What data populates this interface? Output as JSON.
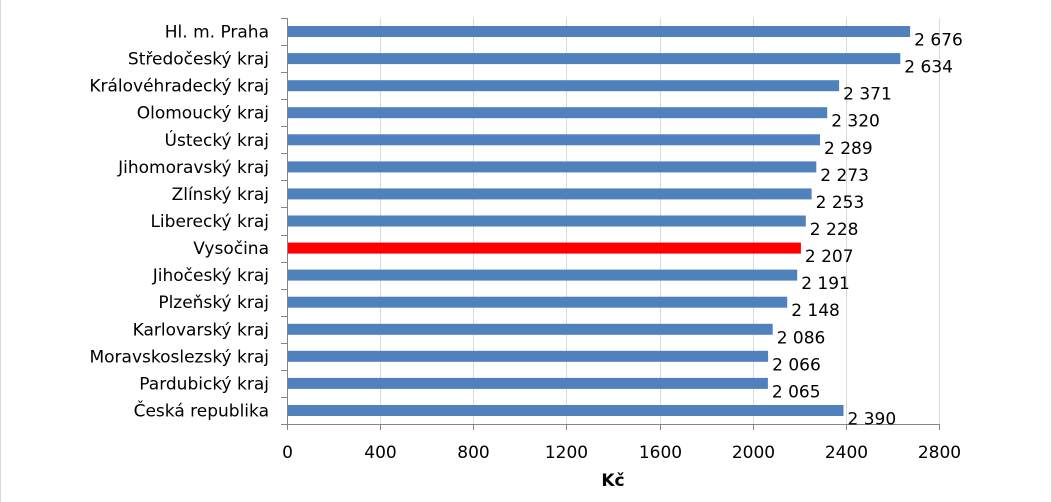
{
  "chart_data": {
    "type": "bar",
    "orientation": "horizontal",
    "title": "",
    "xlabel": "Kč",
    "ylabel": "",
    "xlim": [
      0,
      2800
    ],
    "xticks": [
      0,
      400,
      800,
      1200,
      1600,
      2000,
      2400,
      2800
    ],
    "grid": "vertical",
    "legend": "none",
    "categories": [
      "Hl. m. Praha",
      "Středočeský kraj",
      "Královéhradecký kraj",
      "Olomoucký kraj",
      "Ústecký kraj",
      "Jihomoravský kraj",
      "Zlínský kraj",
      "Liberecký kraj",
      "Vysočina",
      "Jihočeský kraj",
      "Plzeňský kraj",
      "Karlovarský kraj",
      "Moravskoslezský kraj",
      "Pardubický kraj",
      "Česká republika"
    ],
    "values": [
      2676,
      2634,
      2371,
      2320,
      2289,
      2273,
      2253,
      2228,
      2207,
      2191,
      2148,
      2086,
      2066,
      2065,
      2390
    ],
    "value_labels": [
      "2 676",
      "2 634",
      "2 371",
      "2 320",
      "2 289",
      "2 273",
      "2 253",
      "2 228",
      "2 207",
      "2 191",
      "2 148",
      "2 086",
      "2 066",
      "2 065",
      "2 390"
    ],
    "bar_color": "#4f81bd",
    "highlight": {
      "category": "Vysočina",
      "color": "#ff0000"
    }
  }
}
